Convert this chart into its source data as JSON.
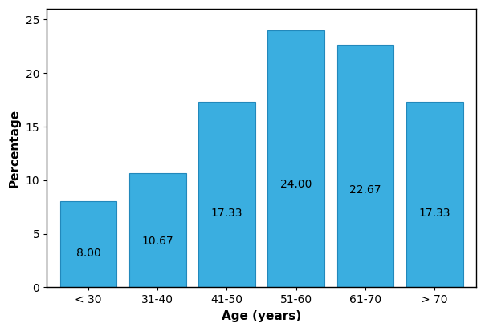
{
  "categories": [
    "< 30",
    "31-40",
    "41-50",
    "51-60",
    "61-70",
    "> 70"
  ],
  "values": [
    8.0,
    10.67,
    17.33,
    24.0,
    22.67,
    17.33
  ],
  "bar_color": "#3aaee0",
  "bar_edgecolor": "#2288bb",
  "xlabel": "Age (years)",
  "ylabel": "Percentage",
  "ylim": [
    0,
    26
  ],
  "yticks": [
    0,
    5,
    10,
    15,
    20,
    25
  ],
  "label_fontsize": 11,
  "tick_fontsize": 10,
  "value_label_fontsize": 10,
  "bar_width": 0.82,
  "figure_width": 6.04,
  "figure_height": 4.13,
  "dpi": 100,
  "bg_color": "#ffffff"
}
